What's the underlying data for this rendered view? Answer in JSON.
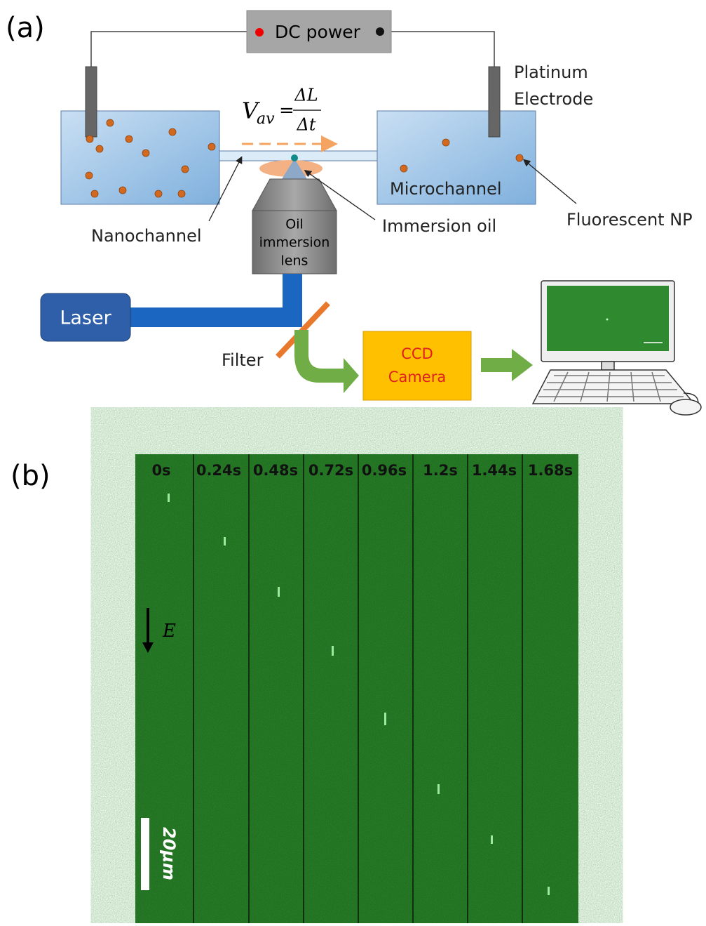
{
  "panel_a": {
    "label": "(a)",
    "power": "DC power",
    "electrode": {
      "lines": [
        "Platinum",
        "Electrode"
      ]
    },
    "formula": {
      "symbol": "V",
      "subscript": "av",
      "equals": "=",
      "numerator": "ΔL",
      "denominator": "Δt"
    },
    "nanochannel": "Nanochannel",
    "microchannel": "Microchannel",
    "immersion_oil": "Immersion oil",
    "fluorescent_np": "Fluorescent NP",
    "lens": {
      "lines": [
        "Oil",
        "immersion",
        "lens"
      ]
    },
    "laser": "Laser",
    "filter": "Filter",
    "camera": {
      "lines": [
        "CCD",
        "Camera"
      ]
    }
  },
  "panel_b": {
    "label": "(b)",
    "times": [
      "0s",
      "0.24s",
      "0.48s",
      "0.72s",
      "0.96s",
      "1.2s",
      "1.44s",
      "1.68s"
    ],
    "field": "E",
    "scale": "20μm"
  }
}
